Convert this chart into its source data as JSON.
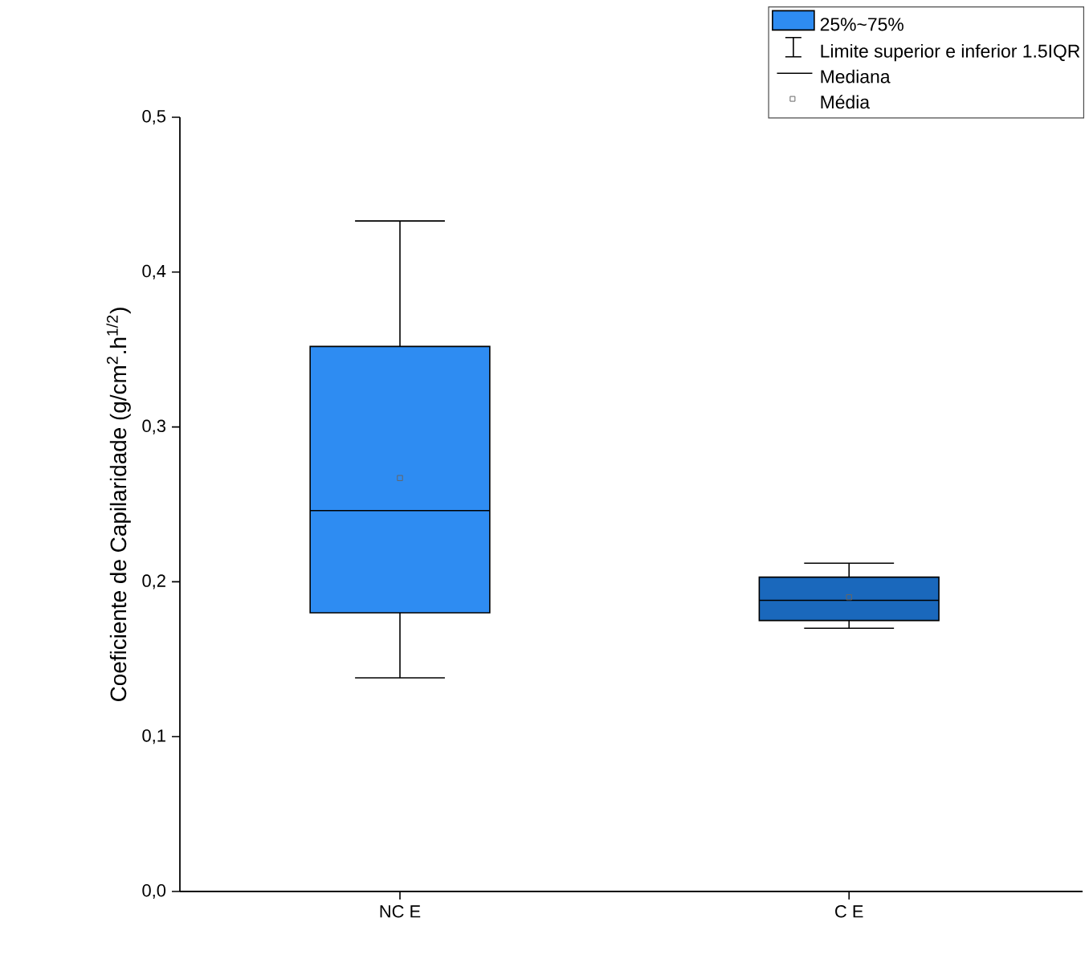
{
  "chart_data": {
    "type": "box",
    "ylabel": "Coeficiente de Capilaridade (g/cm$^{2}$.h$^{1/2}$)",
    "categories": [
      "NC E",
      "C E"
    ],
    "colors": [
      "#2e8cf2",
      "#1a68bc"
    ],
    "boxes": [
      {
        "low": 0.138,
        "q1": 0.18,
        "median": 0.246,
        "q3": 0.352,
        "high": 0.433,
        "mean": 0.267
      },
      {
        "low": 0.17,
        "q1": 0.175,
        "median": 0.188,
        "q3": 0.203,
        "high": 0.212,
        "mean": 0.19
      }
    ],
    "ylim": [
      0,
      0.5
    ],
    "yticks": [
      {
        "value": 0,
        "label": "0,0"
      },
      {
        "value": 0.1,
        "label": "0,1"
      },
      {
        "value": 0.2,
        "label": "0,2"
      },
      {
        "value": 0.3,
        "label": "0,3"
      },
      {
        "value": 0.4,
        "label": "0,4"
      },
      {
        "value": 0.5,
        "label": "0,5"
      }
    ],
    "grid": false,
    "annotations": [
      "25%~75%",
      "Limite superior e inferior 1.5IQR",
      "Mediana",
      "Média"
    ]
  }
}
